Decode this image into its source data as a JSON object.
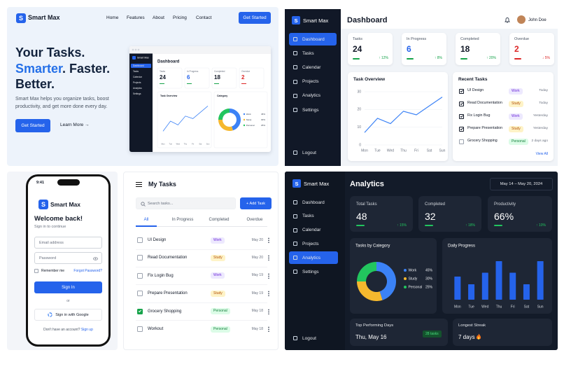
{
  "brand": {
    "letter": "S",
    "name": "Smart Max"
  },
  "landing": {
    "nav": [
      "Home",
      "Features",
      "About",
      "Pricing",
      "Contact"
    ],
    "nav_button": "Get Started",
    "headline": {
      "line1": "Your Tasks.",
      "highlight": "Smarter",
      "line2_rest": ". Faster.",
      "line3": "Better."
    },
    "description": "Smart Max helps you organize tasks, boost productivity, and get more done every day.",
    "primary_button": "Get Started",
    "secondary_button": "Learn More →",
    "mockup": {
      "category_title": "Category"
    }
  },
  "sidebar": {
    "nav": [
      "Dashboard",
      "Tasks",
      "Calendar",
      "Projects",
      "Analytics",
      "Settings"
    ],
    "logout": "Logout"
  },
  "dashboard": {
    "title": "Dashboard",
    "user": "John Doe",
    "active_nav": 0,
    "stats": [
      {
        "label": "Tasks",
        "value": 24,
        "change": "↑ 12%",
        "value_color": "#111827",
        "change_color": "#16a34a"
      },
      {
        "label": "In Progress",
        "value": 6,
        "change": "↑ 8%",
        "value_color": "#2563eb",
        "change_color": "#16a34a"
      },
      {
        "label": "Completed",
        "value": 18,
        "change": "↑ 20%",
        "value_color": "#111827",
        "change_color": "#16a34a"
      },
      {
        "label": "Overdue",
        "value": 2,
        "change": "↓ 5%",
        "value_color": "#dc2626",
        "change_color": "#dc2626"
      }
    ],
    "task_overview": {
      "title": "Task Overview",
      "chart": {
        "type": "line",
        "categories": [
          "Mon",
          "Tue",
          "Wed",
          "Thu",
          "Fri",
          "Sat",
          "Sun"
        ],
        "values": [
          7,
          15,
          12,
          19,
          17,
          22,
          27
        ],
        "ylim": [
          0,
          30
        ],
        "yticks": [
          0,
          10,
          20,
          30
        ],
        "color": "#3b82f6"
      }
    },
    "recent_tasks": {
      "title": "Recent Tasks",
      "items": [
        {
          "name": "UI Design",
          "tag": "Work",
          "date": "Today",
          "done": true
        },
        {
          "name": "Read Documentation",
          "tag": "Study",
          "date": "Today",
          "done": true
        },
        {
          "name": "Fix Login Bug",
          "tag": "Work",
          "date": "Yesterday",
          "done": true
        },
        {
          "name": "Prepare Presentation",
          "tag": "Study",
          "date": "Yesterday",
          "done": true
        },
        {
          "name": "Grocery Shopping",
          "tag": "Personal",
          "date": "2 days ago",
          "done": false
        }
      ],
      "view_all": "View All"
    }
  },
  "login": {
    "time": "9:41",
    "welcome": "Welcome back!",
    "subtitle": "Sign in to continue",
    "email_placeholder": "Email address",
    "password_placeholder": "Password",
    "remember": "Remember me",
    "forgot": "Forgot Password?",
    "sign_in": "Sign In",
    "or": "or",
    "google": "Sign in with Google",
    "no_account": "Don't have an account?",
    "sign_up": "Sign up"
  },
  "my_tasks": {
    "title": "My Tasks",
    "search_placeholder": "Search tasks...",
    "add_button": "+ Add Task",
    "tabs": [
      "All",
      "In Progress",
      "Completed",
      "Overdue"
    ],
    "active_tab": 0,
    "items": [
      {
        "name": "UI Design",
        "tag": "Work",
        "date": "May 20",
        "done": false
      },
      {
        "name": "Read Documentation",
        "tag": "Study",
        "date": "May 20",
        "done": false
      },
      {
        "name": "Fix Login Bug",
        "tag": "Work",
        "date": "May 19",
        "done": false
      },
      {
        "name": "Prepare Presentation",
        "tag": "Study",
        "date": "May 19",
        "done": false
      },
      {
        "name": "Grocery Shopping",
        "tag": "Personal",
        "date": "May 18",
        "done": true
      },
      {
        "name": "Workout",
        "tag": "Personal",
        "date": "May 18",
        "done": false
      }
    ]
  },
  "analytics": {
    "title": "Analytics",
    "date_range": "May 14 – May 20, 2024",
    "active_nav": 4,
    "stats": [
      {
        "label": "Total Tasks",
        "value": 48,
        "change": "↑ 15%"
      },
      {
        "label": "Completed",
        "value": 32,
        "change": "↑ 18%"
      },
      {
        "label": "Productivity",
        "value": "66%",
        "change": "↑ 10%"
      }
    ],
    "category_chart": {
      "type": "donut",
      "title": "Tasks by Category",
      "categories": [
        "Work",
        "Study",
        "Personal"
      ],
      "values": [
        45,
        30,
        25
      ],
      "value_labels": [
        "45%",
        "30%",
        "25%"
      ],
      "colors": [
        "#3b82f6",
        "#f5b82e",
        "#22c55e"
      ]
    },
    "daily_chart": {
      "type": "bar",
      "title": "Daily Progress",
      "categories": [
        "Mon",
        "Tue",
        "Wed",
        "Thu",
        "Fri",
        "Sat",
        "Sun"
      ],
      "values": [
        6,
        4,
        7,
        10,
        7,
        4,
        10
      ],
      "color": "#2563eb"
    },
    "top_day": {
      "title": "Top Performing Days",
      "day": "Thu, May 16",
      "badge": "28 tasks"
    },
    "streak": {
      "title": "Longest Streak",
      "value": "7 days"
    }
  },
  "tag_colors": {
    "Work": {
      "bg": "#ede9fe",
      "fg": "#6d28d9"
    },
    "Study": {
      "bg": "#fef3c7",
      "fg": "#b45309"
    },
    "Personal": {
      "bg": "#dcfce7",
      "fg": "#15803d"
    }
  }
}
